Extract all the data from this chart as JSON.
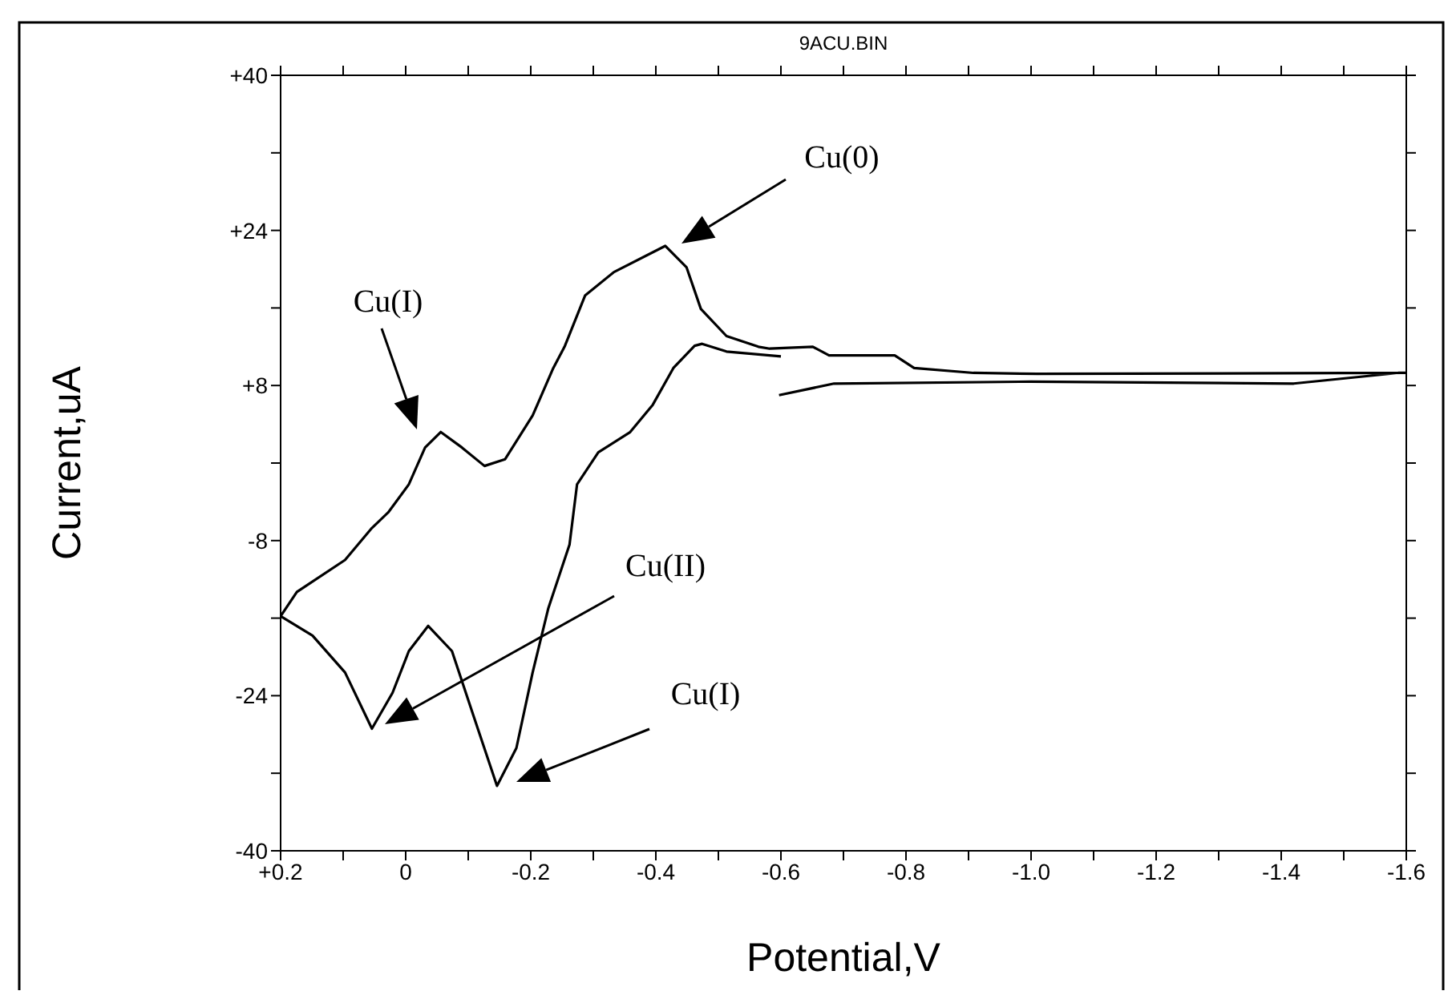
{
  "chart_data": {
    "type": "line",
    "title": "9ACU.BIN",
    "xlabel": "Potential,V",
    "ylabel": "Current,uA",
    "series": [
      {
        "color": "#000000",
        "x": [
          -0.597,
          -0.685,
          -1.0,
          -1.42,
          -1.587,
          -1.6,
          -1.01,
          -0.908,
          -0.813,
          -0.782,
          -0.754,
          -0.677,
          -0.651,
          -0.582,
          -0.564,
          -0.513,
          -0.472,
          -0.449,
          -0.415,
          -0.333,
          -0.287,
          -0.254,
          -0.236,
          -0.203,
          -0.159,
          -0.126,
          -0.09,
          -0.056,
          -0.031,
          -0.005,
          0.028,
          0.054,
          0.097,
          0.174,
          0.2,
          0.149,
          0.097,
          0.054,
          0.021,
          -0.005,
          -0.036,
          -0.074,
          -0.108,
          -0.146,
          -0.177,
          -0.203,
          -0.228,
          -0.262,
          -0.274,
          -0.308,
          -0.359,
          -0.395,
          -0.428,
          -0.462,
          -0.474,
          -0.513,
          -0.6
        ],
        "values": [
          7.0,
          8.2,
          8.4,
          8.2,
          9.3,
          9.3,
          9.2,
          9.3,
          9.8,
          11.1,
          11.1,
          11.1,
          12.0,
          11.8,
          12.0,
          13.1,
          15.9,
          20.2,
          22.4,
          19.7,
          17.3,
          12.0,
          9.8,
          4.9,
          0.4,
          -0.3,
          1.6,
          3.2,
          1.6,
          -2.2,
          -5.1,
          -6.7,
          -10.0,
          -13.3,
          -15.8,
          -17.8,
          -21.6,
          -27.4,
          -23.7,
          -19.4,
          -16.8,
          -19.4,
          -26.0,
          -33.3,
          -29.4,
          -21.6,
          -15.0,
          -8.4,
          -2.2,
          1.1,
          3.2,
          6.0,
          9.8,
          12.1,
          12.3,
          11.5,
          11.0
        ]
      }
    ],
    "annotations": [
      "Cu(0)",
      "Cu(I)",
      "Cu(II)",
      "Cu(I)"
    ],
    "xlim": [
      0.2,
      -1.6
    ],
    "xticks": [
      {
        "value": 0.2,
        "label": "+0.2"
      },
      {
        "value": 0.1,
        "label": null
      },
      {
        "value": 0,
        "label": "0"
      },
      {
        "value": -0.1,
        "label": null
      },
      {
        "value": -0.2,
        "label": "-0.2"
      },
      {
        "value": -0.3,
        "label": null
      },
      {
        "value": -0.4,
        "label": "-0.4"
      },
      {
        "value": -0.5,
        "label": null
      },
      {
        "value": -0.6,
        "label": "-0.6"
      },
      {
        "value": -0.7,
        "label": null
      },
      {
        "value": -0.8,
        "label": "-0.8"
      },
      {
        "value": -0.9,
        "label": null
      },
      {
        "value": -1.0,
        "label": "-1.0"
      },
      {
        "value": -1.1,
        "label": null
      },
      {
        "value": -1.2,
        "label": "-1.2"
      },
      {
        "value": -1.3,
        "label": null
      },
      {
        "value": -1.4,
        "label": "-1.4"
      },
      {
        "value": -1.5,
        "label": null
      },
      {
        "value": -1.6,
        "label": "-1.6"
      }
    ],
    "ylim": [
      -40,
      40
    ],
    "yticks": [
      {
        "value": 40,
        "label": "+40"
      },
      {
        "value": 32,
        "label": null
      },
      {
        "value": 24,
        "label": "+24"
      },
      {
        "value": 16,
        "label": null
      },
      {
        "value": 8,
        "label": "+8"
      },
      {
        "value": 0,
        "label": null
      },
      {
        "value": -8,
        "label": "-8"
      },
      {
        "value": -16,
        "label": null
      },
      {
        "value": -24,
        "label": "-24"
      },
      {
        "value": -32,
        "label": null
      },
      {
        "value": -40,
        "label": "-40"
      }
    ]
  }
}
